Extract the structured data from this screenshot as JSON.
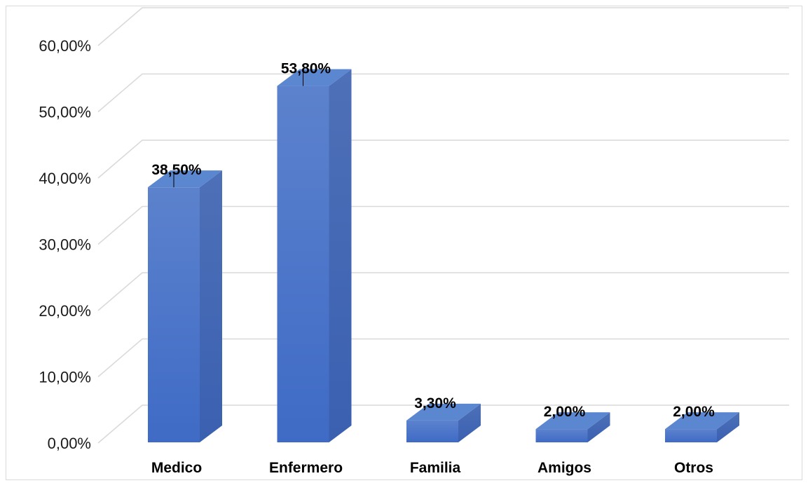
{
  "chart_data": {
    "type": "bar",
    "categories": [
      "Medico",
      "Enfermero",
      "Familia",
      "Amigos",
      "Otros"
    ],
    "values": [
      38.5,
      53.8,
      3.3,
      2.0,
      2.0
    ],
    "data_labels": [
      "38,50%",
      "53,80%",
      "3,30%",
      "2,00%",
      "2,00%"
    ],
    "y_tick_labels": [
      "0,00%",
      "10,00%",
      "20,00%",
      "30,00%",
      "40,00%",
      "50,00%",
      "60,00%"
    ],
    "ylim": [
      0,
      60
    ],
    "title": "",
    "xlabel": "",
    "ylabel": "",
    "grid": true,
    "style": "3d-column",
    "colors": {
      "bar_front": "#4472c4",
      "bar_side": "#3a5ea8",
      "bar_top": "#5b86d0",
      "grid": "#d9d9d9"
    }
  }
}
